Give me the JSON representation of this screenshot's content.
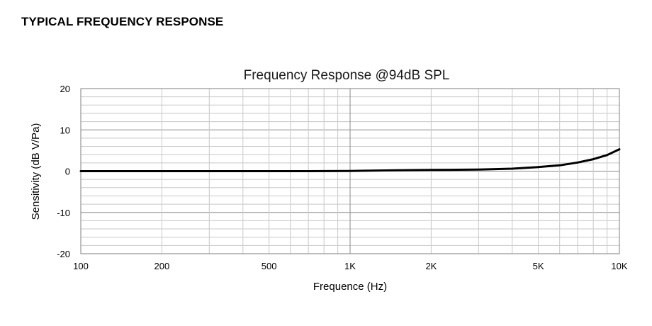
{
  "page": {
    "heading": "TYPICAL FREQUENCY RESPONSE"
  },
  "chart_data": {
    "type": "line",
    "title": "Frequency Response @94dB SPL",
    "xlabel": "Frequence (Hz)",
    "ylabel": "Sensitivity (dB V/Pa)",
    "xscale": "log",
    "xlim": [
      100,
      10000
    ],
    "ylim": [
      -20,
      20
    ],
    "grid": true,
    "legend": "none",
    "x_ticks": [
      {
        "value": 100,
        "label": "100"
      },
      {
        "value": 200,
        "label": "200"
      },
      {
        "value": 500,
        "label": "500"
      },
      {
        "value": 1000,
        "label": "1K"
      },
      {
        "value": 2000,
        "label": "2K"
      },
      {
        "value": 5000,
        "label": "5K"
      },
      {
        "value": 10000,
        "label": "10K"
      }
    ],
    "y_ticks": [
      {
        "value": 20,
        "label": "20"
      },
      {
        "value": 10,
        "label": "10"
      },
      {
        "value": 0,
        "label": "0"
      },
      {
        "value": -10,
        "label": "-10"
      },
      {
        "value": -20,
        "label": "-20"
      }
    ],
    "series": [
      {
        "color": "#000000",
        "x": [
          100,
          150,
          200,
          300,
          500,
          700,
          1000,
          1500,
          2000,
          2500,
          3000,
          4000,
          5000,
          6000,
          7000,
          8000,
          9000,
          10000
        ],
        "y": [
          0.0,
          0.0,
          0.0,
          0.0,
          0.0,
          0.0,
          0.05,
          0.2,
          0.3,
          0.35,
          0.4,
          0.6,
          1.0,
          1.4,
          2.1,
          2.9,
          3.9,
          5.3
        ]
      }
    ]
  }
}
